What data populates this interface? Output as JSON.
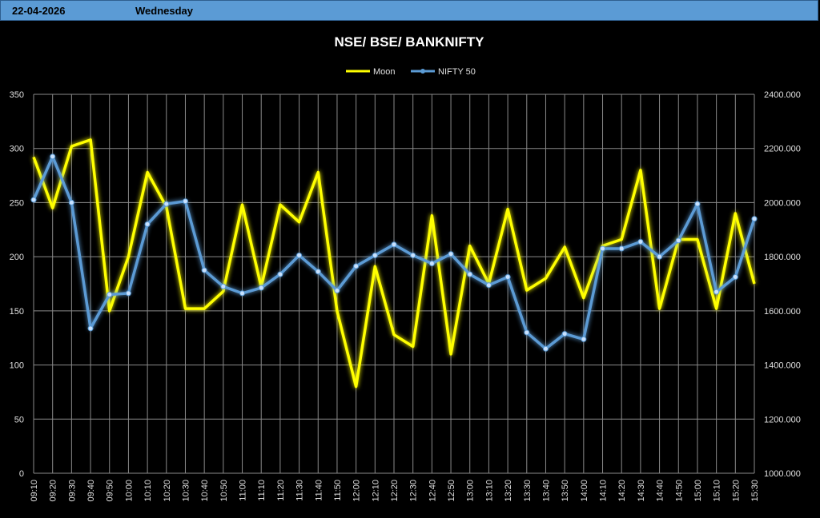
{
  "header": {
    "date": "22-04-2026",
    "day": "Wednesday"
  },
  "chart_data": {
    "type": "line",
    "title": "NSE/ BSE/ BANKNIFTY",
    "categories": [
      "09:10",
      "09:20",
      "09:30",
      "09:40",
      "09:50",
      "10:00",
      "10:10",
      "10:20",
      "10:30",
      "10:40",
      "10:50",
      "11:00",
      "11:10",
      "11:20",
      "11:30",
      "11:40",
      "11:50",
      "12:00",
      "12:10",
      "12:20",
      "12:30",
      "12:40",
      "12:50",
      "13:00",
      "13:10",
      "13:20",
      "13:30",
      "13:40",
      "13:50",
      "14:00",
      "14:10",
      "14:20",
      "14:30",
      "14:40",
      "14:50",
      "15:00",
      "15:10",
      "15:20",
      "15:30"
    ],
    "series": [
      {
        "name": "Moon",
        "axis": "left",
        "color": "#ffff00",
        "values": [
          292,
          245,
          302,
          308,
          150,
          200,
          278,
          246,
          152,
          152,
          168,
          248,
          172,
          248,
          232,
          278,
          150,
          80,
          191,
          128,
          117,
          238,
          110,
          210,
          175,
          244,
          169,
          180,
          209,
          162,
          210,
          216,
          280,
          152,
          216,
          216,
          152,
          240,
          175
        ]
      },
      {
        "name": "NIFTY 50",
        "axis": "right",
        "color": "#5b9bd5",
        "values": [
          2010,
          2170,
          2000,
          1535,
          1660,
          1665,
          1920,
          1995,
          2005,
          1750,
          1690,
          1665,
          1685,
          1735,
          1805,
          1745,
          1675,
          1765,
          1805,
          1845,
          1805,
          1775,
          1810,
          1735,
          1695,
          1725,
          1520,
          1460,
          1515,
          1495,
          1830,
          1830,
          1855,
          1800,
          1860,
          1995,
          1670,
          1725,
          1940
        ]
      }
    ],
    "y_left": {
      "min": 0,
      "max": 350,
      "step": 50,
      "ticks": [
        "0",
        "50",
        "100",
        "150",
        "200",
        "250",
        "300",
        "350"
      ]
    },
    "y_right": {
      "min": 1000,
      "max": 2400,
      "step": 200,
      "ticks": [
        "1000.000",
        "1200.000",
        "1400.000",
        "1600.000",
        "1800.000",
        "2000.000",
        "2200.000",
        "2400.000"
      ]
    },
    "grid": true,
    "legend_position": "top-center"
  }
}
